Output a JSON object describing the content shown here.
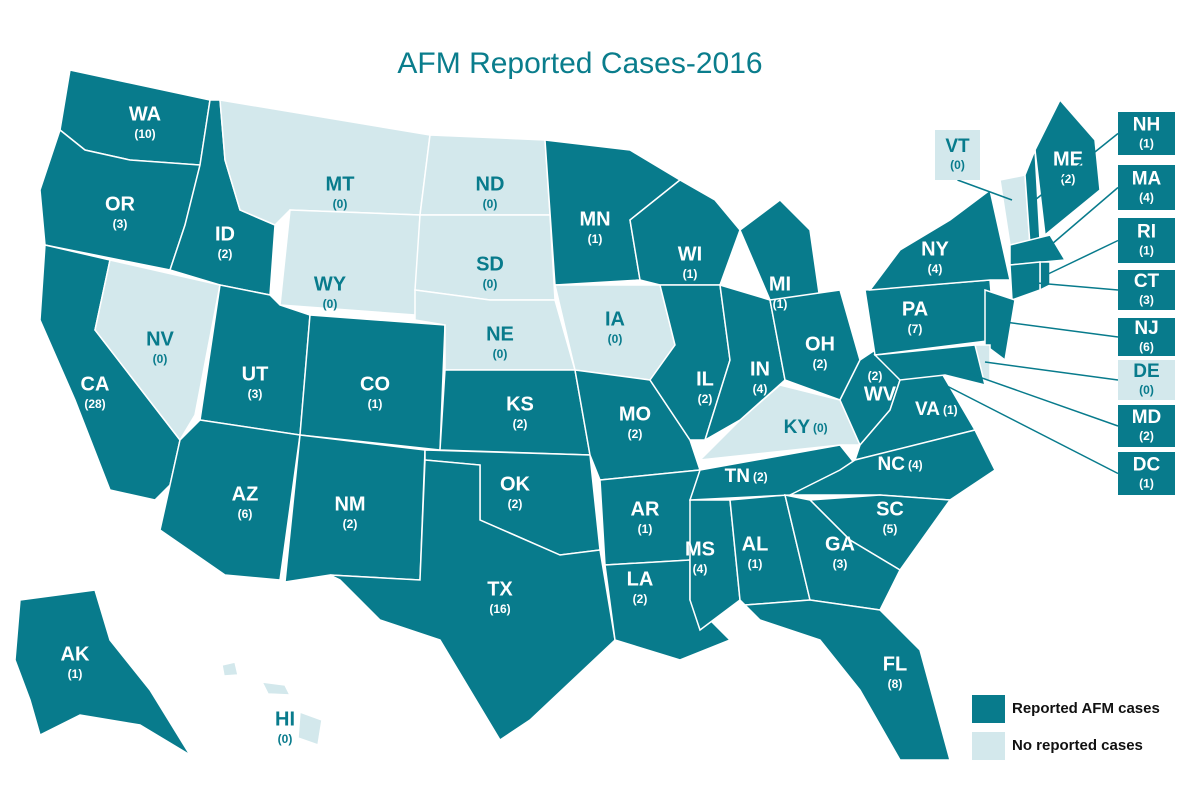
{
  "title": "AFM Reported Cases-2016",
  "legend": [
    {
      "label": "Reported AFM cases",
      "color": "#087b8c"
    },
    {
      "label": "No reported cases",
      "color": "#d3e8ec"
    }
  ],
  "states": [
    {
      "abbr": "WA",
      "cases": 10,
      "cases_label": "(10)"
    },
    {
      "abbr": "OR",
      "cases": 3,
      "cases_label": "(3)"
    },
    {
      "abbr": "CA",
      "cases": 28,
      "cases_label": "(28)"
    },
    {
      "abbr": "NV",
      "cases": 0,
      "cases_label": "(0)"
    },
    {
      "abbr": "ID",
      "cases": 2,
      "cases_label": "(2)"
    },
    {
      "abbr": "MT",
      "cases": 0,
      "cases_label": "(0)"
    },
    {
      "abbr": "WY",
      "cases": 0,
      "cases_label": "(0)"
    },
    {
      "abbr": "UT",
      "cases": 3,
      "cases_label": "(3)"
    },
    {
      "abbr": "CO",
      "cases": 1,
      "cases_label": "(1)"
    },
    {
      "abbr": "AZ",
      "cases": 6,
      "cases_label": "(6)"
    },
    {
      "abbr": "NM",
      "cases": 2,
      "cases_label": "(2)"
    },
    {
      "abbr": "ND",
      "cases": 0,
      "cases_label": "(0)"
    },
    {
      "abbr": "SD",
      "cases": 0,
      "cases_label": "(0)"
    },
    {
      "abbr": "NE",
      "cases": 0,
      "cases_label": "(0)"
    },
    {
      "abbr": "KS",
      "cases": 2,
      "cases_label": "(2)"
    },
    {
      "abbr": "OK",
      "cases": 2,
      "cases_label": "(2)"
    },
    {
      "abbr": "TX",
      "cases": 16,
      "cases_label": "(16)"
    },
    {
      "abbr": "MN",
      "cases": 1,
      "cases_label": "(1)"
    },
    {
      "abbr": "IA",
      "cases": 0,
      "cases_label": "(0)"
    },
    {
      "abbr": "MO",
      "cases": 2,
      "cases_label": "(2)"
    },
    {
      "abbr": "AR",
      "cases": 1,
      "cases_label": "(1)"
    },
    {
      "abbr": "LA",
      "cases": 2,
      "cases_label": "(2)"
    },
    {
      "abbr": "WI",
      "cases": 1,
      "cases_label": "(1)"
    },
    {
      "abbr": "IL",
      "cases": 2,
      "cases_label": "(2)"
    },
    {
      "abbr": "MS",
      "cases": 4,
      "cases_label": "(4)"
    },
    {
      "abbr": "AL",
      "cases": 1,
      "cases_label": "(1)"
    },
    {
      "abbr": "TN",
      "cases": 2,
      "cases_label": "(2)"
    },
    {
      "abbr": "KY",
      "cases": 0,
      "cases_label": "(0)"
    },
    {
      "abbr": "IN",
      "cases": 4,
      "cases_label": "(4)"
    },
    {
      "abbr": "MI",
      "cases": 1,
      "cases_label": "(1)"
    },
    {
      "abbr": "OH",
      "cases": 2,
      "cases_label": "(2)"
    },
    {
      "abbr": "WV",
      "cases": 2,
      "cases_label": "(2)"
    },
    {
      "abbr": "VA",
      "cases": 1,
      "cases_label": "(1)"
    },
    {
      "abbr": "NC",
      "cases": 4,
      "cases_label": "(4)"
    },
    {
      "abbr": "SC",
      "cases": 5,
      "cases_label": "(5)"
    },
    {
      "abbr": "GA",
      "cases": 3,
      "cases_label": "(3)"
    },
    {
      "abbr": "FL",
      "cases": 8,
      "cases_label": "(8)"
    },
    {
      "abbr": "PA",
      "cases": 7,
      "cases_label": "(7)"
    },
    {
      "abbr": "NY",
      "cases": 4,
      "cases_label": "(4)"
    },
    {
      "abbr": "VT",
      "cases": 0,
      "cases_label": "(0)"
    },
    {
      "abbr": "ME",
      "cases": 2,
      "cases_label": "(2)"
    },
    {
      "abbr": "NH",
      "cases": 1,
      "cases_label": "(1)"
    },
    {
      "abbr": "MA",
      "cases": 4,
      "cases_label": "(4)"
    },
    {
      "abbr": "RI",
      "cases": 1,
      "cases_label": "(1)"
    },
    {
      "abbr": "CT",
      "cases": 3,
      "cases_label": "(3)"
    },
    {
      "abbr": "NJ",
      "cases": 6,
      "cases_label": "(6)"
    },
    {
      "abbr": "DE",
      "cases": 0,
      "cases_label": "(0)"
    },
    {
      "abbr": "MD",
      "cases": 2,
      "cases_label": "(2)"
    },
    {
      "abbr": "DC",
      "cases": 1,
      "cases_label": "(1)"
    },
    {
      "abbr": "AK",
      "cases": 1,
      "cases_label": "(1)"
    },
    {
      "abbr": "HI",
      "cases": 0,
      "cases_label": "(0)"
    }
  ]
}
